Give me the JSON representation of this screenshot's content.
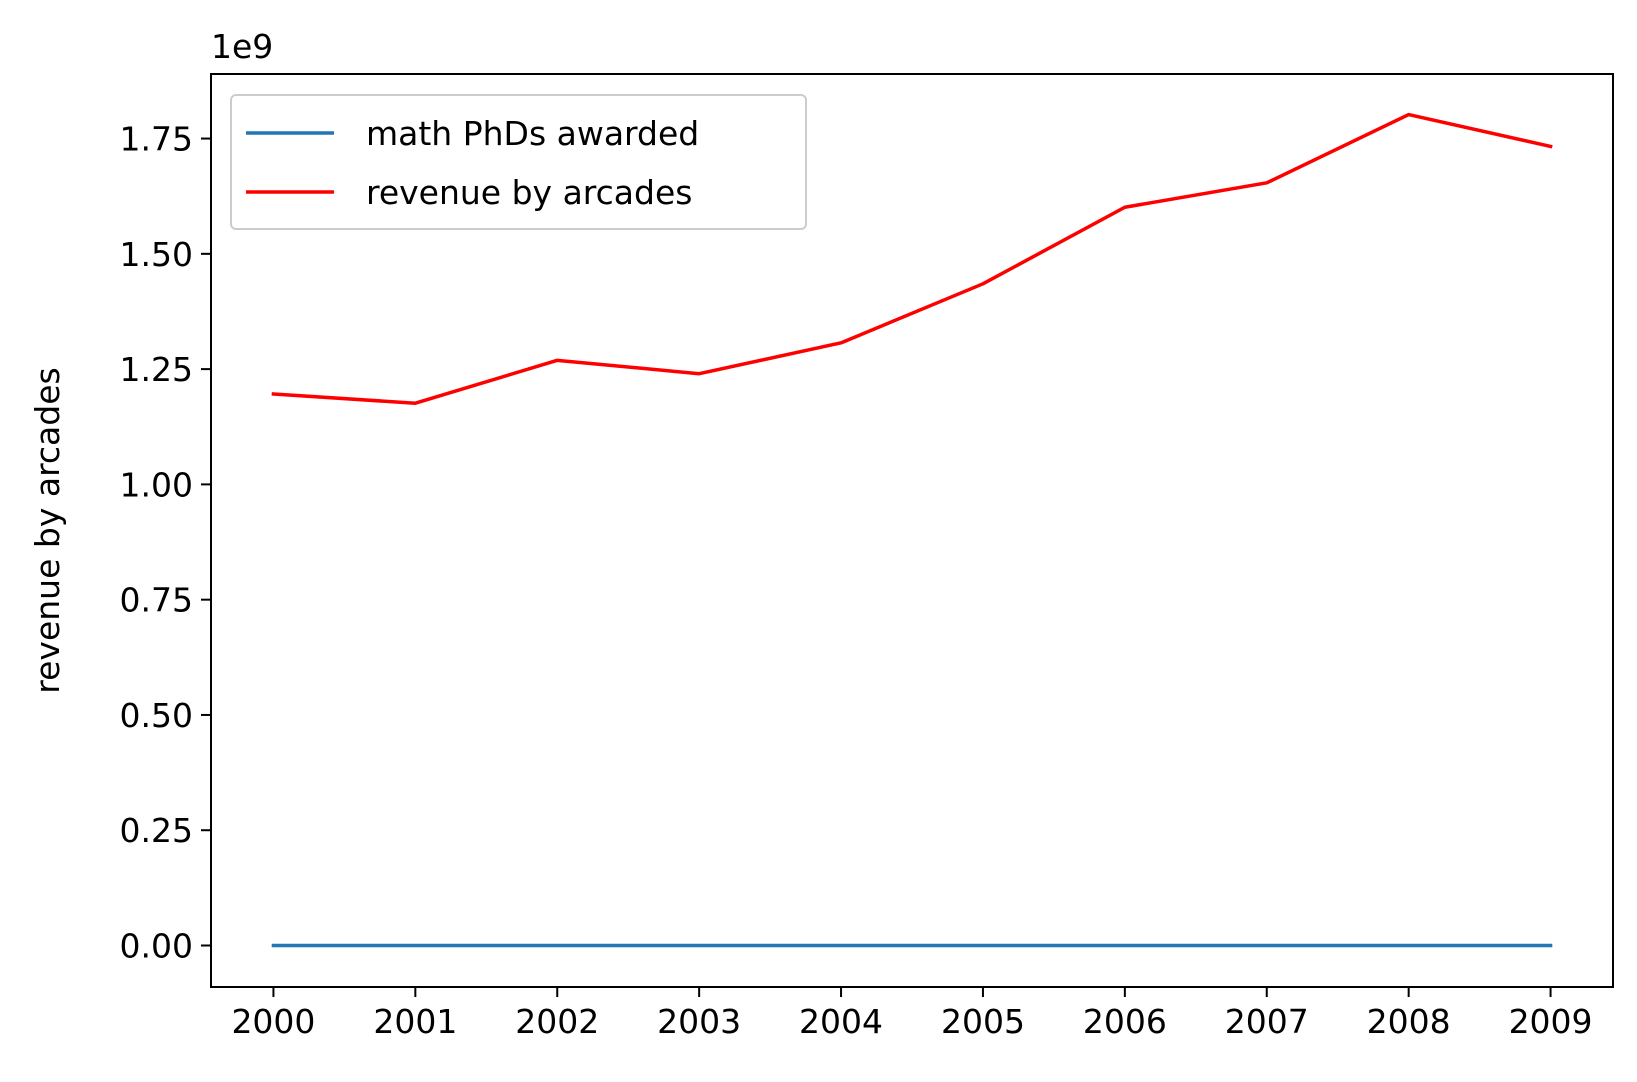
{
  "chart_data": {
    "type": "line",
    "title": "",
    "xlabel": "",
    "ylabel": "revenue by arcades",
    "offset_label": "1e9",
    "scale": 1000000000,
    "x": [
      2000,
      2001,
      2002,
      2003,
      2004,
      2005,
      2006,
      2007,
      2008,
      2009
    ],
    "x_ticks": [
      "2000",
      "2001",
      "2002",
      "2003",
      "2004",
      "2005",
      "2006",
      "2007",
      "2008",
      "2009"
    ],
    "xlim": [
      1999.56,
      2009.44
    ],
    "y_ticks": [
      0.0,
      0.25,
      0.5,
      0.75,
      1.0,
      1.25,
      1.5,
      1.75
    ],
    "y_tick_labels": [
      "0.00",
      "0.25",
      "0.50",
      "0.75",
      "1.00",
      "1.25",
      "1.50",
      "1.75"
    ],
    "ylim": [
      -0.09,
      1.89
    ],
    "grid": false,
    "legend_position": "upper-left",
    "series": [
      {
        "name": "math PhDs awarded",
        "color": "#1f77b4",
        "values": [
          1.2e-06,
          1.2e-06,
          1.2e-06,
          1.2e-06,
          1.2e-06,
          1.3e-06,
          1.3e-06,
          1.4e-06,
          1.5e-06,
          1.6e-06
        ]
      },
      {
        "name": "revenue by arcades",
        "color": "#ff0000",
        "values": [
          1.196,
          1.176,
          1.269,
          1.24,
          1.307,
          1.435,
          1.601,
          1.654,
          1.802,
          1.733
        ]
      }
    ]
  }
}
